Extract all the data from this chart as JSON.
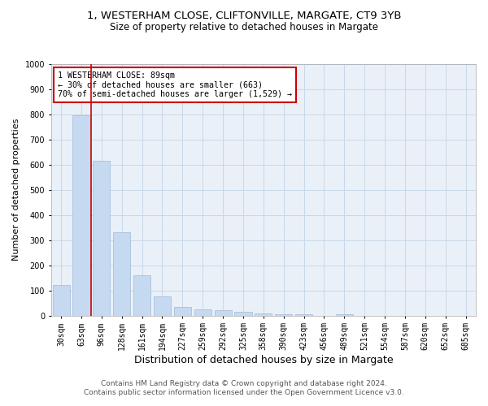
{
  "title_line1": "1, WESTERHAM CLOSE, CLIFTONVILLE, MARGATE, CT9 3YB",
  "title_line2": "Size of property relative to detached houses in Margate",
  "xlabel": "Distribution of detached houses by size in Margate",
  "ylabel": "Number of detached properties",
  "categories": [
    "30sqm",
    "63sqm",
    "96sqm",
    "128sqm",
    "161sqm",
    "194sqm",
    "227sqm",
    "259sqm",
    "292sqm",
    "325sqm",
    "358sqm",
    "390sqm",
    "423sqm",
    "456sqm",
    "489sqm",
    "521sqm",
    "554sqm",
    "587sqm",
    "620sqm",
    "652sqm",
    "685sqm"
  ],
  "values": [
    120,
    795,
    615,
    330,
    160,
    75,
    35,
    25,
    20,
    14,
    8,
    5,
    5,
    0,
    5,
    0,
    0,
    0,
    0,
    0,
    0
  ],
  "bar_color": "#c5d9f0",
  "bar_edge_color": "#a0b8d8",
  "vline_color": "#cc0000",
  "annotation_text": "1 WESTERHAM CLOSE: 89sqm\n← 30% of detached houses are smaller (663)\n70% of semi-detached houses are larger (1,529) →",
  "annotation_box_color": "white",
  "annotation_box_edge": "#cc0000",
  "ylim": [
    0,
    1000
  ],
  "yticks": [
    0,
    100,
    200,
    300,
    400,
    500,
    600,
    700,
    800,
    900,
    1000
  ],
  "grid_color": "#c8d8e8",
  "bg_color": "#eaf0f8",
  "footer": "Contains HM Land Registry data © Crown copyright and database right 2024.\nContains public sector information licensed under the Open Government Licence v3.0.",
  "title_fontsize": 9.5,
  "subtitle_fontsize": 8.5,
  "axis_label_fontsize": 8,
  "tick_fontsize": 7,
  "footer_fontsize": 6.5
}
